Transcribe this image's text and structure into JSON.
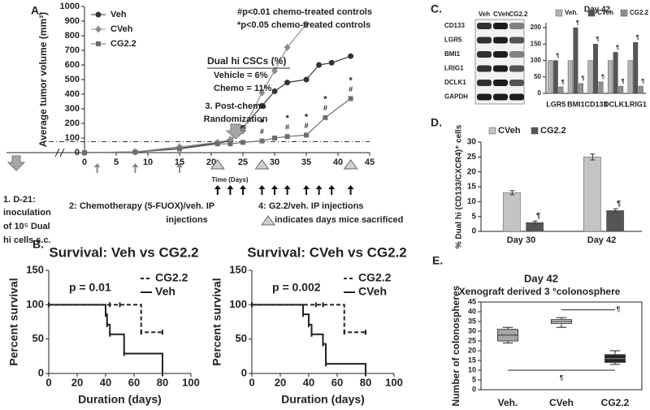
{
  "panels": [
    "A.",
    "B.",
    "C.",
    "D.",
    "E."
  ],
  "blot": {
    "columns": [
      "Veh",
      "CVeh",
      "CG2.2"
    ],
    "rows": [
      "CD133",
      "LGR5",
      "BMI1",
      "LRIG1",
      "DCLK1",
      "GAPDH"
    ]
  },
  "chart_data": [
    {
      "type": "line",
      "ylabel": "Average tumor volume (mm³)",
      "xlabel": "Time (Days)",
      "xlim": [
        0,
        45
      ],
      "xticks": [
        0,
        5,
        10,
        15,
        20,
        25,
        30,
        35,
        40,
        45
      ],
      "ylim": [
        0,
        1000
      ],
      "yticks": [
        0,
        100,
        200,
        300,
        400,
        500,
        600,
        700,
        800,
        900,
        1000
      ],
      "legend": "upper left",
      "series": [
        {
          "name": "Veh",
          "color": "#333333",
          "marker": "circle",
          "x": [
            0,
            8,
            15,
            21,
            23,
            25,
            28,
            30,
            32,
            35,
            37,
            39,
            42
          ],
          "values": [
            0,
            5,
            30,
            65,
            80,
            170,
            320,
            420,
            480,
            500,
            600,
            615,
            660
          ]
        },
        {
          "name": "CVeh",
          "color": "#8c8c8c",
          "marker": "diamond",
          "x": [
            0,
            8,
            15,
            21,
            23,
            25,
            28,
            30,
            32,
            35
          ],
          "values": [
            0,
            5,
            40,
            70,
            90,
            150,
            410,
            560,
            720,
            880
          ]
        },
        {
          "name": "CG2.2",
          "color": "#6e6e6e",
          "marker": "square",
          "x": [
            0,
            8,
            15,
            21,
            23,
            25,
            28,
            30,
            32,
            35,
            38,
            42
          ],
          "values": [
            0,
            3,
            25,
            60,
            60,
            70,
            80,
            100,
            110,
            120,
            240,
            370
          ]
        }
      ],
      "reference_line": 75,
      "significance": {
        "days": [
          28,
          32,
          35,
          38,
          42
        ],
        "marks": [
          "*",
          "#"
        ]
      },
      "annotations": [
        "#p<0.01 chemo-treated controls",
        "*p<0.05 chemo-treated controls",
        "Dual hi CSCs (%)",
        "Vehicle = 6%",
        "Chemo = 11%",
        "3. Post-chemo",
        "Randomization",
        "1. D-21:",
        "inoculation",
        "of 10⁵ Dual",
        "hi cells s.c.",
        "2: Chemotherapy (5-FUOX)/veh. IP",
        "injections",
        "4: G2.2/veh. IP injections",
        "indicates days mice sacrificed"
      ],
      "chemo_days": [
        2,
        8,
        15
      ],
      "treatment_days": [
        21,
        23,
        25,
        28,
        30,
        32,
        35,
        37,
        39,
        42
      ],
      "sacrifice_days": [
        21,
        28,
        42
      ]
    },
    {
      "type": "step",
      "title": "Survival: Veh vs CG2.2",
      "ylabel": "Percent survival",
      "xlabel": "Duration (days)",
      "xlim": [
        0,
        100
      ],
      "xticks": [
        0,
        20,
        40,
        60,
        80,
        100
      ],
      "ylim": [
        0,
        150
      ],
      "yticks": [
        0,
        50,
        100,
        150
      ],
      "legend": "upper right",
      "annotations": [
        "p = 0.01"
      ],
      "series": [
        {
          "name": "CG2.2",
          "color": "#222222",
          "style": "dashed",
          "x": [
            0,
            43,
            50,
            65,
            80
          ],
          "values": [
            100,
            100,
            100,
            60,
            60
          ]
        },
        {
          "name": "Veh",
          "color": "#222222",
          "style": "solid",
          "x": [
            0,
            40,
            41,
            43,
            53,
            80
          ],
          "values": [
            100,
            86,
            71,
            57,
            29,
            0
          ]
        }
      ]
    },
    {
      "type": "step",
      "title": "Survival: CVeh vs CG2.2",
      "ylabel": "Percent survival",
      "xlabel": "Duration (days)",
      "xlim": [
        0,
        100
      ],
      "xticks": [
        0,
        20,
        40,
        60,
        80,
        100
      ],
      "ylim": [
        0,
        150
      ],
      "yticks": [
        0,
        50,
        100,
        150
      ],
      "legend": "upper right",
      "annotations": [
        "p = 0.002"
      ],
      "series": [
        {
          "name": "CG2.2",
          "color": "#222222",
          "style": "dashed",
          "x": [
            0,
            45,
            50,
            65,
            80
          ],
          "values": [
            100,
            100,
            100,
            60,
            60
          ]
        },
        {
          "name": "CVeh",
          "color": "#222222",
          "style": "solid",
          "x": [
            0,
            36,
            40,
            42,
            50,
            52,
            80
          ],
          "values": [
            100,
            86,
            71,
            57,
            43,
            14,
            0
          ]
        }
      ]
    },
    {
      "type": "bar",
      "title": "Day 42",
      "categories": [
        "LGR5",
        "BMI1",
        "CD133",
        "DCLK1",
        "LRIG1"
      ],
      "ylim": [
        0,
        215
      ],
      "yticks": [
        0,
        50,
        100,
        150,
        200
      ],
      "legend": "top",
      "annotation_mark": "¶",
      "marked_series": [
        1,
        2
      ],
      "series": [
        {
          "name": "Veh.",
          "color": "#b3b3b3",
          "values": [
            100,
            100,
            100,
            100,
            100
          ]
        },
        {
          "name": "CVeh",
          "color": "#555555",
          "values": [
            100,
            200,
            150,
            125,
            155
          ]
        },
        {
          "name": "CG2.2",
          "color": "#8f8f8f",
          "values": [
            20,
            30,
            35,
            22,
            22
          ]
        }
      ]
    },
    {
      "type": "bar",
      "ylabel": "% Dual hi (CD133/CXCR4)⁺ cells",
      "categories": [
        "Day 30",
        "Day 42"
      ],
      "ylim": [
        0,
        30
      ],
      "yticks": [
        0,
        5,
        10,
        15,
        20,
        25,
        30
      ],
      "legend": "upper left",
      "annotation_mark": "¶",
      "marked_series": [
        1
      ],
      "series": [
        {
          "name": "CVeh",
          "color": "#c4c4c4",
          "values": [
            13,
            25
          ],
          "errors": [
            0.7,
            1
          ]
        },
        {
          "name": "CG2.2",
          "color": "#555555",
          "values": [
            3,
            7
          ],
          "errors": [
            0.5,
            0.6
          ]
        }
      ]
    },
    {
      "type": "box",
      "title": "Day 42",
      "subtitle": "Xenograft derived 3 °colonosphere",
      "ylabel": "Number of colonospheres",
      "categories": [
        "Veh.",
        "CVeh",
        "CG2.2"
      ],
      "ylim": [
        0,
        45
      ],
      "yticks": [
        0,
        5,
        10,
        15,
        20,
        25,
        30,
        35,
        40,
        45
      ],
      "min": [
        24,
        32,
        13
      ],
      "q1": [
        25,
        34,
        14
      ],
      "median": [
        28,
        35,
        16
      ],
      "q3": [
        31,
        36,
        18
      ],
      "max": [
        32,
        37,
        20
      ],
      "colors": [
        "#a6a6a6",
        "#cfcfcf",
        "#262626"
      ],
      "brackets": [
        {
          "from": 1,
          "to": 2,
          "value": 41,
          "label": "¶"
        },
        {
          "from": 0,
          "to": 2,
          "value": 10,
          "label": "¶"
        }
      ]
    }
  ]
}
